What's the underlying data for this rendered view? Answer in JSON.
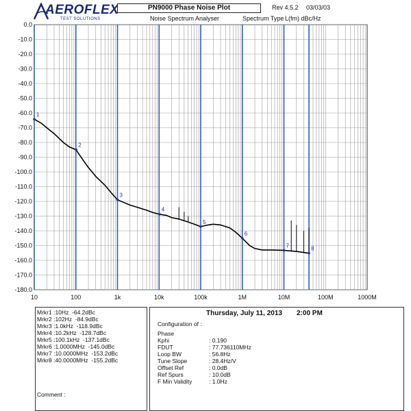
{
  "header": {
    "logo_text": "AEROFLEX",
    "logo_sub": "TEST SOLUTIONS",
    "title": "PN9000 Phase Noise Plot",
    "revision": "Rev 4.5.2",
    "rev_date": "03/03/03",
    "analyser": "Noise Spectrum Analyser",
    "spectrum_type_label": "Spectrum Type",
    "spectrum_type_value": "L(fm) dBc/Hz"
  },
  "chart_data": {
    "type": "line",
    "x_scale": "log",
    "xlim": [
      10,
      1000000000
    ],
    "ylim": [
      -180,
      0
    ],
    "y_ticks": [
      "0.0",
      "-10.0",
      "-20.0",
      "-30.0",
      "-40.0",
      "-50.0",
      "-60.0",
      "-70.0",
      "-80.0",
      "-90.0",
      "-100.0",
      "-110.0",
      "-120.0",
      "-130.0",
      "-140.0",
      "-150.0",
      "-160.0",
      "-170.0",
      "-180.0"
    ],
    "x_ticks": [
      "10",
      "100",
      "1k",
      "10k",
      "100k",
      "1M",
      "10M",
      "100M"
    ],
    "grid": true,
    "series": [
      {
        "color": "#000000",
        "x": [
          10,
          15,
          20,
          30,
          50,
          70,
          100,
          150,
          200,
          300,
          500,
          700,
          1000,
          1500,
          2000,
          3000,
          5000,
          7000,
          10000,
          15000,
          20000,
          30000,
          50000,
          70000,
          100000,
          150000,
          200000,
          300000,
          500000,
          700000,
          1000000,
          1500000,
          2000000,
          3000000,
          5000000,
          10000000,
          20000000,
          40000000
        ],
        "y": [
          -64.2,
          -67,
          -70,
          -74,
          -80,
          -83,
          -84.9,
          -92,
          -97,
          -103,
          -109,
          -114,
          -118.9,
          -121,
          -122.5,
          -124,
          -126,
          -127.5,
          -128.7,
          -129.5,
          -131,
          -132,
          -134,
          -135.5,
          -137.1,
          -136,
          -135.5,
          -136,
          -138,
          -141,
          -145,
          -150,
          -152,
          -153,
          -153,
          -153.2,
          -154,
          -155.2
        ]
      }
    ],
    "spurs": [
      {
        "x": 30000,
        "y": -124
      },
      {
        "x": 40000,
        "y": -127
      },
      {
        "x": 50000,
        "y": -130
      },
      {
        "x": 15000000,
        "y": -133
      },
      {
        "x": 20000000,
        "y": -136
      },
      {
        "x": 30000000,
        "y": -140
      },
      {
        "x": 40000000,
        "y": -138
      }
    ],
    "markers": [
      {
        "label": "1",
        "x": 10,
        "y": -64.2
      },
      {
        "label": "2",
        "x": 102,
        "y": -84.9
      },
      {
        "label": "3",
        "x": 1000,
        "y": -118.9
      },
      {
        "label": "4",
        "x": 10200,
        "y": -128.7
      },
      {
        "label": "5",
        "x": 100100,
        "y": -137.1
      },
      {
        "label": "6",
        "x": 1000000,
        "y": -145
      },
      {
        "label": "7",
        "x": 10000000,
        "y": -153.2
      },
      {
        "label": "8",
        "x": 40000000,
        "y": -155.2
      }
    ]
  },
  "marker_readouts": [
    "Mrkr1 :10Hz  -64.2dBc",
    "Mrkr2 :102Hz  -84.9dBc",
    "Mrkr3 :1.0kHz  -118.9dBc",
    "Mrkr4 :10.2kHz  -128.7dBc",
    "Mrkr5 :100.1kHz  -137.1dBc",
    "Mrkr6 :1.0000MHz  -145.0dBc",
    "Mrkr7 :10.0000MHz  -153.2dBc",
    "Mrkr8 :40.0000MHz  -155.2dBc"
  ],
  "comment_label": "Comment :",
  "info": {
    "date": "Thursday, July 11, 2013",
    "time": "2:00 PM",
    "config_title": "Configuration of :",
    "rows": [
      {
        "label": "Phase",
        "value": ""
      },
      {
        "label": "Kphi",
        "value": ": 0.190"
      },
      {
        "label": "FDUT",
        "value": ": 77.736110MHz"
      },
      {
        "label": "Loop BW",
        "value": ": 56.8Hz"
      },
      {
        "label": "Tune Slope",
        "value": ": 28.4Hz/V"
      },
      {
        "label": "Offset Ref",
        "value": ": 0.0dB"
      },
      {
        "label": "Ref Spurs",
        "value": ": 10.0dB"
      },
      {
        "label": "F Min Validity",
        "value": ": 1.0Hz"
      }
    ]
  }
}
